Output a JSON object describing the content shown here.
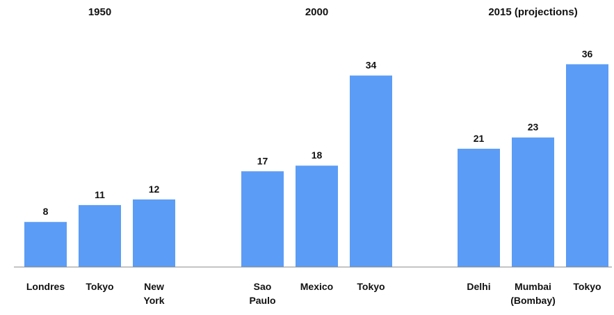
{
  "chart_data": {
    "type": "bar",
    "bar_color": "#5b9cf6",
    "axis_color": "#888888",
    "grid": false,
    "groups": [
      {
        "title": "1950",
        "bars": [
          {
            "category": [
              "Londres"
            ],
            "value": 8
          },
          {
            "category": [
              "Tokyo"
            ],
            "value": 11
          },
          {
            "category": [
              "New",
              "York"
            ],
            "value": 12
          }
        ]
      },
      {
        "title": "2000",
        "bars": [
          {
            "category": [
              "Sao",
              "Paulo"
            ],
            "value": 17
          },
          {
            "category": [
              "Mexico"
            ],
            "value": 18
          },
          {
            "category": [
              "Tokyo"
            ],
            "value": 34
          }
        ]
      },
      {
        "title": "2015 (projections)",
        "bars": [
          {
            "category": [
              "Delhi"
            ],
            "value": 21
          },
          {
            "category": [
              "Mumbai",
              "(Bombay)"
            ],
            "value": 23
          },
          {
            "category": [
              "Tokyo"
            ],
            "value": 36
          }
        ]
      }
    ]
  }
}
